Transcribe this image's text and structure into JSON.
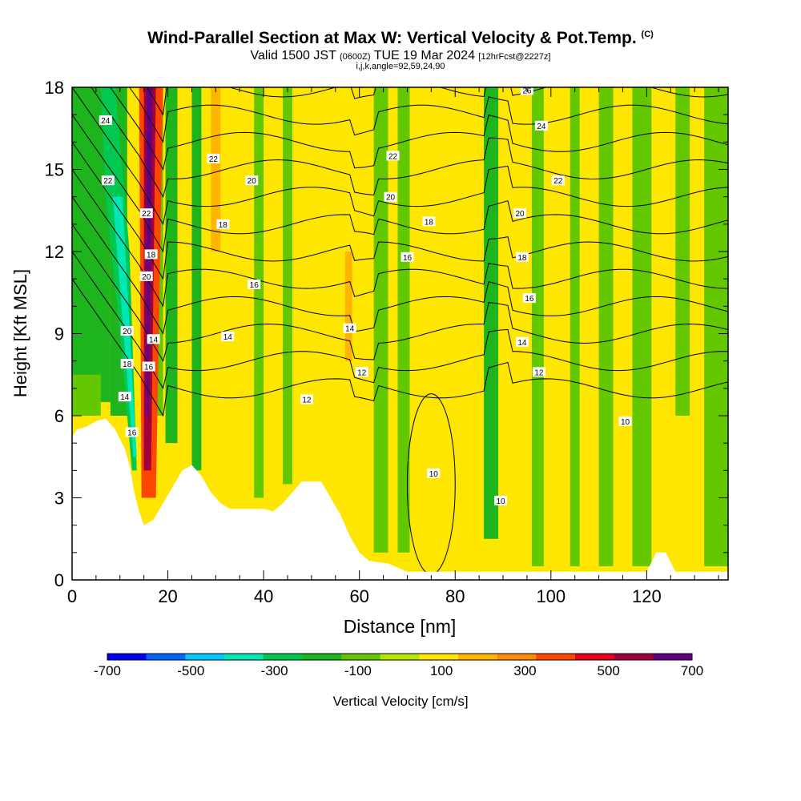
{
  "title": {
    "main": "Wind-Parallel Section at Max W: Vertical Velocity & Pot.Temp.",
    "copyright": "(C)",
    "valid_prefix": "Valid 1500 JST",
    "utc": "(0600Z)",
    "valid_date": "TUE 19 Mar 2024",
    "forecast": "[12hrFcst@2227z]",
    "indices": "i,j,k,angle=92,59,24,90"
  },
  "chart_data": {
    "type": "heatmap",
    "xlabel": "Distance [nm]",
    "ylabel": "Height [Kft MSL]",
    "xlim": [
      0,
      137
    ],
    "ylim": [
      0,
      18
    ],
    "x_ticks": [
      "0",
      "20",
      "40",
      "60",
      "80",
      "100",
      "120"
    ],
    "x_tick_values": [
      0,
      20,
      40,
      60,
      80,
      100,
      120
    ],
    "y_ticks": [
      "0",
      "3",
      "6",
      "9",
      "12",
      "15",
      "18"
    ],
    "y_tick_values": [
      0,
      3,
      6,
      9,
      12,
      15,
      18
    ],
    "colorbar": {
      "label": "Vertical Velocity [cm/s]",
      "tick_labels": [
        "-700",
        "-500",
        "-300",
        "-100",
        "100",
        "300",
        "500",
        "700"
      ],
      "bins": [
        -700,
        -600,
        -500,
        -400,
        -300,
        -200,
        -100,
        0,
        100,
        200,
        300,
        400,
        500,
        600,
        700
      ],
      "colors": [
        "#0000ff",
        "#0064ff",
        "#00c8ff",
        "#00e6b4",
        "#00c850",
        "#1eb41e",
        "#64c800",
        "#b4e600",
        "#ffe600",
        "#ffb400",
        "#ff8c00",
        "#ff4600",
        "#e6001e",
        "#a0003c",
        "#640082"
      ]
    },
    "terrain": [
      [
        0,
        5.2
      ],
      [
        1,
        5.5
      ],
      [
        3,
        5.6
      ],
      [
        5,
        5.8
      ],
      [
        7,
        5.9
      ],
      [
        9,
        5.5
      ],
      [
        11,
        4.8
      ],
      [
        12,
        4.2
      ],
      [
        13,
        3.2
      ],
      [
        14,
        2.5
      ],
      [
        15,
        2.0
      ],
      [
        17,
        2.2
      ],
      [
        19,
        2.8
      ],
      [
        21,
        3.4
      ],
      [
        23,
        4.0
      ],
      [
        25,
        4.2
      ],
      [
        27,
        3.8
      ],
      [
        29,
        3.2
      ],
      [
        31,
        2.8
      ],
      [
        33,
        2.6
      ],
      [
        37,
        2.6
      ],
      [
        40,
        2.6
      ],
      [
        42,
        2.5
      ],
      [
        44,
        2.8
      ],
      [
        46,
        3.2
      ],
      [
        48,
        3.6
      ],
      [
        52,
        3.6
      ],
      [
        54,
        3.0
      ],
      [
        56,
        2.4
      ],
      [
        58,
        1.6
      ],
      [
        60,
        1.0
      ],
      [
        62,
        0.7
      ],
      [
        66,
        0.6
      ],
      [
        70,
        0.3
      ],
      [
        80,
        0.3
      ],
      [
        90,
        0.3
      ],
      [
        100,
        0.3
      ],
      [
        110,
        0.3
      ],
      [
        120,
        0.3
      ],
      [
        122,
        1.0
      ],
      [
        124,
        1.0
      ],
      [
        126,
        0.3
      ],
      [
        137,
        0.3
      ]
    ],
    "contours": {
      "type": "potential_temperature",
      "labels": [
        {
          "text": "24",
          "x": 7,
          "y": 16.8
        },
        {
          "text": "22",
          "x": 7.5,
          "y": 14.6
        },
        {
          "text": "22",
          "x": 15.5,
          "y": 13.4
        },
        {
          "text": "18",
          "x": 16.5,
          "y": 11.9
        },
        {
          "text": "20",
          "x": 15.5,
          "y": 11.1
        },
        {
          "text": "20",
          "x": 11.5,
          "y": 9.1
        },
        {
          "text": "18",
          "x": 11.5,
          "y": 7.9
        },
        {
          "text": "14",
          "x": 11,
          "y": 6.7
        },
        {
          "text": "16",
          "x": 12.5,
          "y": 5.4
        },
        {
          "text": "14",
          "x": 17,
          "y": 8.8
        },
        {
          "text": "16",
          "x": 16,
          "y": 7.8
        },
        {
          "text": "22",
          "x": 29.5,
          "y": 15.4
        },
        {
          "text": "20",
          "x": 37.5,
          "y": 14.6
        },
        {
          "text": "18",
          "x": 31.5,
          "y": 13.0
        },
        {
          "text": "16",
          "x": 38,
          "y": 10.8
        },
        {
          "text": "14",
          "x": 32.5,
          "y": 8.9
        },
        {
          "text": "12",
          "x": 49,
          "y": 6.6
        },
        {
          "text": "14",
          "x": 58,
          "y": 9.2
        },
        {
          "text": "12",
          "x": 60.5,
          "y": 7.6
        },
        {
          "text": "22",
          "x": 67,
          "y": 15.5
        },
        {
          "text": "20",
          "x": 66.5,
          "y": 14.0
        },
        {
          "text": "18",
          "x": 74.5,
          "y": 13.1
        },
        {
          "text": "16",
          "x": 70,
          "y": 11.8
        },
        {
          "text": "26",
          "x": 95,
          "y": 17.9
        },
        {
          "text": "24",
          "x": 98,
          "y": 16.6
        },
        {
          "text": "22",
          "x": 101.5,
          "y": 14.6
        },
        {
          "text": "20",
          "x": 93.5,
          "y": 13.4
        },
        {
          "text": "18",
          "x": 94,
          "y": 11.8
        },
        {
          "text": "16",
          "x": 95.5,
          "y": 10.3
        },
        {
          "text": "14",
          "x": 94,
          "y": 8.7
        },
        {
          "text": "12",
          "x": 97.5,
          "y": 7.6
        },
        {
          "text": "10",
          "x": 115.5,
          "y": 5.8
        },
        {
          "text": "10",
          "x": 75.5,
          "y": 3.9
        },
        {
          "text": "10",
          "x": 89.5,
          "y": 2.9
        }
      ]
    }
  }
}
